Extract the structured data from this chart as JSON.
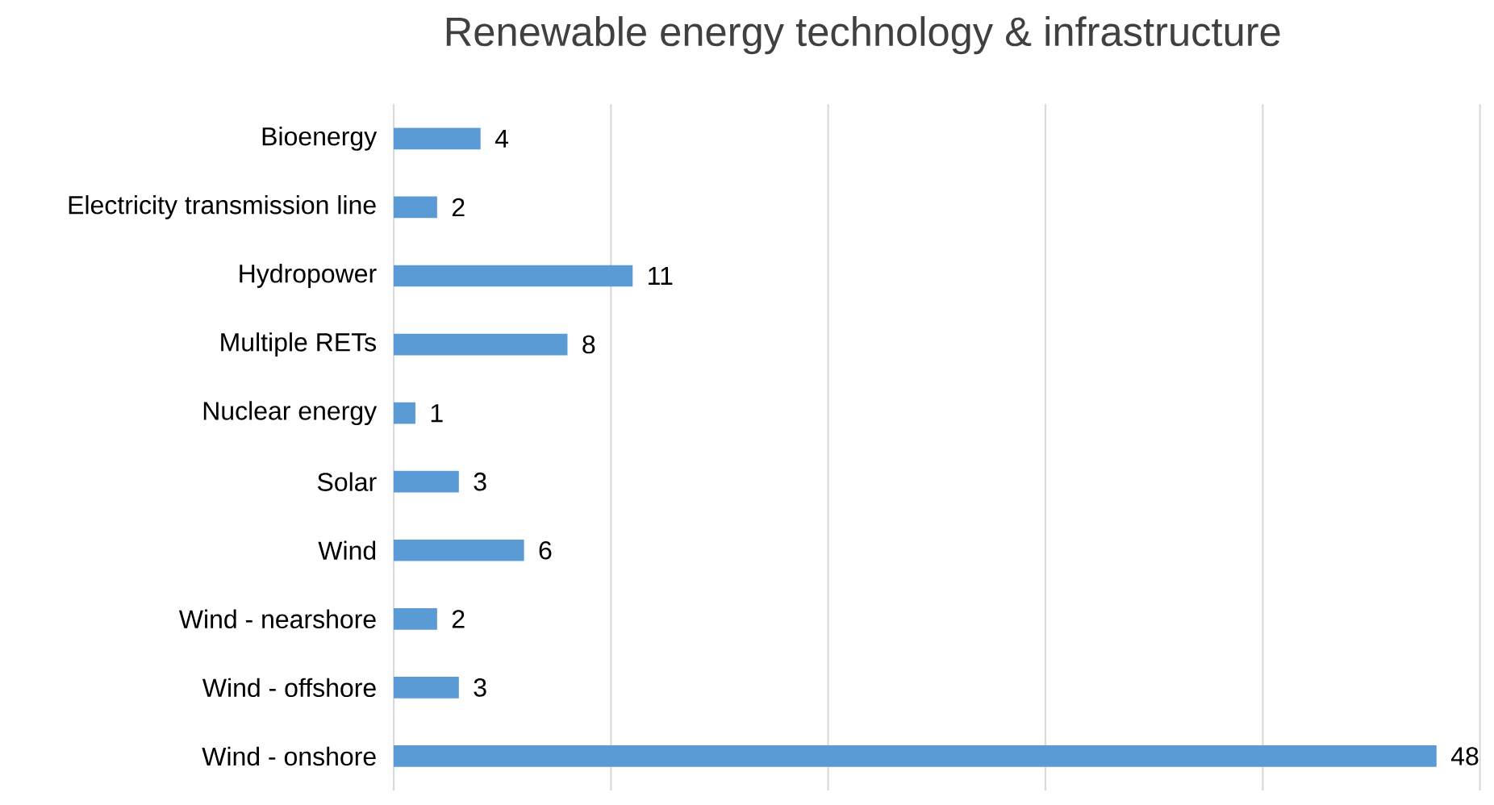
{
  "chart_data": {
    "type": "bar",
    "orientation": "horizontal",
    "title": "Renewable energy technology & infrastructure",
    "categories": [
      "Bioenergy",
      "Electricity transmission line",
      "Hydropower",
      "Multiple RETs",
      "Nuclear energy",
      "Solar",
      "Wind",
      "Wind - nearshore",
      "Wind - offshore",
      "Wind - onshore"
    ],
    "values": [
      4,
      2,
      11,
      8,
      1,
      3,
      6,
      2,
      3,
      48
    ],
    "color": "#5b9bd5",
    "xlim": [
      0,
      50
    ],
    "xticks": [
      {
        "value": 0,
        "label": null
      },
      {
        "value": 10,
        "label": null
      },
      {
        "value": 20,
        "label": null
      },
      {
        "value": 30,
        "label": null
      },
      {
        "value": 40,
        "label": null
      },
      {
        "value": 50,
        "label": null
      }
    ],
    "grid": "x",
    "tick_labels": "y",
    "data_labels": true
  }
}
